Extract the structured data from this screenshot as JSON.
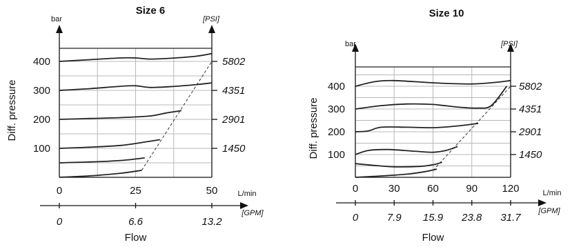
{
  "chart_data": [
    {
      "type": "line",
      "title": "Size 6",
      "ylabel": "Diff. pressure",
      "xlabel": "Flow",
      "y_unit_left": "bar",
      "y_unit_right": "[PSI]",
      "x_unit_primary": "L/min",
      "x_unit_secondary": "[GPM]",
      "xlim": [
        0,
        50
      ],
      "ylim": [
        0,
        420
      ],
      "x_ticks": [
        0,
        25,
        50
      ],
      "x_ticks_secondary": [
        "0",
        "6.6",
        "13.2"
      ],
      "x_ticks_secondary_values": [
        0,
        25,
        50
      ],
      "y_ticks": [
        100,
        200,
        300,
        400
      ],
      "y_ticks_right": [
        "1450",
        "2901",
        "4351",
        "5802"
      ],
      "grid_x": [
        0,
        12.5,
        25,
        37.5,
        50
      ],
      "grid_y": [
        0,
        50,
        100,
        150,
        200,
        250,
        300,
        350,
        400
      ],
      "grid": true,
      "series": [
        {
          "values": [
            [
              0,
              400
            ],
            [
              10,
              406
            ],
            [
              20,
              412
            ],
            [
              25,
              412
            ],
            [
              30,
              408
            ],
            [
              38,
              412
            ],
            [
              45,
              418
            ],
            [
              50,
              427
            ]
          ]
        },
        {
          "values": [
            [
              0,
              300
            ],
            [
              10,
              306
            ],
            [
              20,
              314
            ],
            [
              25,
              316
            ],
            [
              30,
              310
            ],
            [
              38,
              314
            ],
            [
              45,
              320
            ],
            [
              50,
              326
            ]
          ]
        },
        {
          "values": [
            [
              0,
              200
            ],
            [
              10,
              203
            ],
            [
              20,
              206
            ],
            [
              30,
              212
            ],
            [
              35,
              222
            ],
            [
              40,
              230
            ]
          ]
        },
        {
          "values": [
            [
              0,
              100
            ],
            [
              10,
              104
            ],
            [
              20,
              110
            ],
            [
              27,
              120
            ],
            [
              33,
              130
            ]
          ]
        },
        {
          "values": [
            [
              0,
              50
            ],
            [
              10,
              53
            ],
            [
              20,
              58
            ],
            [
              28,
              67
            ]
          ]
        },
        {
          "values": [
            [
              0,
              0
            ],
            [
              10,
              5
            ],
            [
              20,
              14
            ],
            [
              27,
              24
            ]
          ]
        }
      ],
      "limit_line": [
        [
          27,
          24
        ],
        [
          50,
          400
        ]
      ]
    },
    {
      "type": "line",
      "title": "Size 10",
      "ylabel": "Diff. pressure",
      "xlabel": "Flow",
      "y_unit_left": "bar",
      "y_unit_right": "[PSI]",
      "x_unit_primary": "L/min",
      "x_unit_secondary": "[GPM]",
      "xlim": [
        0,
        120
      ],
      "ylim": [
        0,
        460
      ],
      "x_ticks": [
        0,
        30,
        60,
        90,
        120
      ],
      "x_ticks_secondary": [
        "0",
        "7.9",
        "15.9",
        "23.8",
        "31.7"
      ],
      "x_ticks_secondary_values": [
        0,
        30,
        60,
        90,
        120
      ],
      "y_ticks": [
        100,
        200,
        300,
        400
      ],
      "y_ticks_right": [
        "1450",
        "2901",
        "4351",
        "5802"
      ],
      "grid_x": [
        0,
        30,
        60,
        90,
        120
      ],
      "grid_y": [
        0,
        50,
        100,
        150,
        200,
        250,
        300,
        350,
        400,
        450
      ],
      "grid": true,
      "series": [
        {
          "values": [
            [
              0,
              400
            ],
            [
              15,
              420
            ],
            [
              30,
              425
            ],
            [
              60,
              415
            ],
            [
              90,
              410
            ],
            [
              110,
              418
            ],
            [
              120,
              425
            ]
          ]
        },
        {
          "values": [
            [
              0,
              300
            ],
            [
              20,
              315
            ],
            [
              40,
              322
            ],
            [
              60,
              320
            ],
            [
              80,
              308
            ],
            [
              95,
              304
            ],
            [
              105,
              315
            ],
            [
              117,
              400
            ]
          ]
        },
        {
          "values": [
            [
              0,
              200
            ],
            [
              10,
              204
            ],
            [
              20,
              220
            ],
            [
              40,
              220
            ],
            [
              60,
              218
            ],
            [
              80,
              226
            ],
            [
              95,
              237
            ]
          ]
        },
        {
          "values": [
            [
              0,
              100
            ],
            [
              10,
              118
            ],
            [
              25,
              122
            ],
            [
              45,
              115
            ],
            [
              60,
              110
            ],
            [
              70,
              118
            ],
            [
              79,
              135
            ]
          ]
        },
        {
          "values": [
            [
              0,
              60
            ],
            [
              15,
              52
            ],
            [
              30,
              46
            ],
            [
              50,
              48
            ],
            [
              60,
              55
            ],
            [
              67,
              66
            ]
          ]
        },
        {
          "values": [
            [
              0,
              0
            ],
            [
              20,
              6
            ],
            [
              40,
              14
            ],
            [
              55,
              26
            ],
            [
              63,
              36
            ]
          ]
        }
      ],
      "limit_line": [
        [
          60,
          30
        ],
        [
          120,
          400
        ]
      ]
    }
  ]
}
